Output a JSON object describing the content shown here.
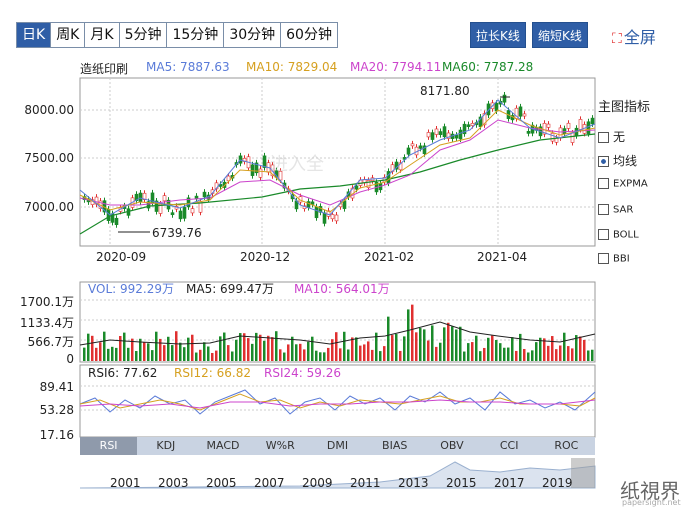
{
  "toolbar": {
    "periods": [
      "日K",
      "周K",
      "月K",
      "5分钟",
      "15分钟",
      "30分钟",
      "60分钟"
    ],
    "active_period": "日K",
    "stretch": "拉长K线",
    "shrink": "缩短K线",
    "fullscreen": "全屏"
  },
  "main_chart": {
    "name": "造纸印刷",
    "ma5": "MA5: 7887.63",
    "ma10": "MA10: 7829.04",
    "ma20": "MA20: 7794.11",
    "ma60": "MA60: 7787.28",
    "y_ticks": [
      "8000.00",
      "7500.00",
      "7000.00"
    ],
    "x_ticks": [
      "2020-09",
      "2020-12",
      "2021-02",
      "2021-04"
    ],
    "high_label": "8171.80",
    "low_label": "6739.76",
    "watermark": "进入全"
  },
  "volume": {
    "vol": "VOL: 992.29万",
    "ma5": "MA5: 699.47万",
    "ma10": "MA10: 564.01万",
    "y_ticks": [
      "1700.1万",
      "1133.4万",
      "566.7万",
      "0"
    ]
  },
  "rsi": {
    "rsi6": "RSI6: 77.62",
    "rsi12": "RSI12: 66.82",
    "rsi24": "RSI24: 59.26",
    "y_ticks": [
      "89.41",
      "53.28",
      "17.16"
    ]
  },
  "side_panel": {
    "title": "主图指标",
    "options": [
      "无",
      "均线",
      "EXPMA",
      "SAR",
      "BOLL",
      "BBI"
    ],
    "selected": "均线"
  },
  "indicator_tabs": [
    "RSI",
    "KDJ",
    "MACD",
    "W%R",
    "DMI",
    "BIAS",
    "OBV",
    "CCI",
    "ROC"
  ],
  "active_indicator": "RSI",
  "timeline_years": [
    "2001",
    "2003",
    "2005",
    "2007",
    "2009",
    "2011",
    "2013",
    "2015",
    "2017",
    "2019"
  ],
  "brand_watermark": "纸視界",
  "brand_site": "papersight.net",
  "colors": {
    "accent": "#2f5ea6",
    "up": "#e03030",
    "down": "#1a8a2a",
    "ma5": "#5a7bd8",
    "ma10": "#d6a020",
    "ma20": "#cc44cc",
    "ma60": "#1a8a2a"
  }
}
